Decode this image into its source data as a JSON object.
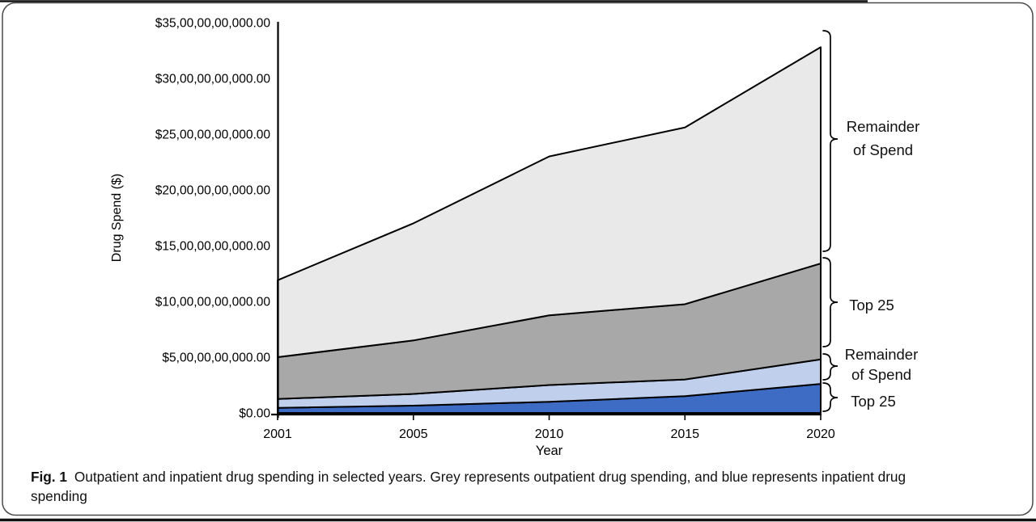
{
  "figure": {
    "caption_label": "Fig. 1",
    "caption_text": "Outpatient and inpatient drug spending in selected years. Grey represents outpatient drug spending, and blue represents inpatient drug spending"
  },
  "chart_data": {
    "type": "area",
    "stacked": true,
    "title": "",
    "xlabel": "Year",
    "ylabel": "Drug Spend ($)",
    "x_categories": [
      "2001",
      "2005",
      "2010",
      "2015",
      "2020"
    ],
    "y_tick_labels_top_to_bottom": [
      "$35,00,00,00,000.00",
      "$30,00,00,00,000.00",
      "$25,00,00,00,000.00",
      "$20,00,00,00,000.00",
      "$15,00,00,00,000.00",
      "$10,00,00,00,000.00",
      "$5,00,00,00,000.00",
      "$0.00"
    ],
    "y_tick_values_billion": [
      35,
      30,
      25,
      20,
      15,
      10,
      5,
      0
    ],
    "ylim_billion": [
      0,
      35
    ],
    "value_unit": "billions of dollars ($1,00,00,00,000)",
    "grid": false,
    "legend_position": "right-side-brackets",
    "outline_color": "#000000",
    "series_bottom_to_top": [
      {
        "name": "Inpatient Top 25",
        "annotation_label": "Top 25",
        "color": "#3e6cc4",
        "values_billion": [
          0.45,
          0.65,
          1.0,
          1.5,
          2.6
        ]
      },
      {
        "name": "Inpatient Remainder of Spend",
        "annotation_label": "Remainder of Spend",
        "color": "#bfcfec",
        "values_billion": [
          0.8,
          1.05,
          1.5,
          1.5,
          2.2
        ]
      },
      {
        "name": "Outpatient Top 25",
        "annotation_label": "Top 25",
        "color": "#a8a8a8",
        "values_billion": [
          3.75,
          4.8,
          6.25,
          6.75,
          8.6
        ]
      },
      {
        "name": "Outpatient Remainder of Spend",
        "annotation_label": "Remainder of Spend",
        "color": "#e9e9e9",
        "values_billion": [
          6.9,
          10.5,
          14.25,
          15.85,
          19.4
        ]
      }
    ],
    "annotations_top_to_bottom": [
      {
        "lines": [
          "Remainder",
          "of Spend"
        ],
        "refers_to": "Outpatient Remainder of Spend"
      },
      {
        "lines": [
          "Top 25"
        ],
        "refers_to": "Outpatient Top 25"
      },
      {
        "lines": [
          "Remainder",
          "of Spend"
        ],
        "refers_to": "Inpatient Remainder of Spend"
      },
      {
        "lines": [
          "Top 25"
        ],
        "refers_to": "Inpatient Top 25"
      }
    ]
  }
}
